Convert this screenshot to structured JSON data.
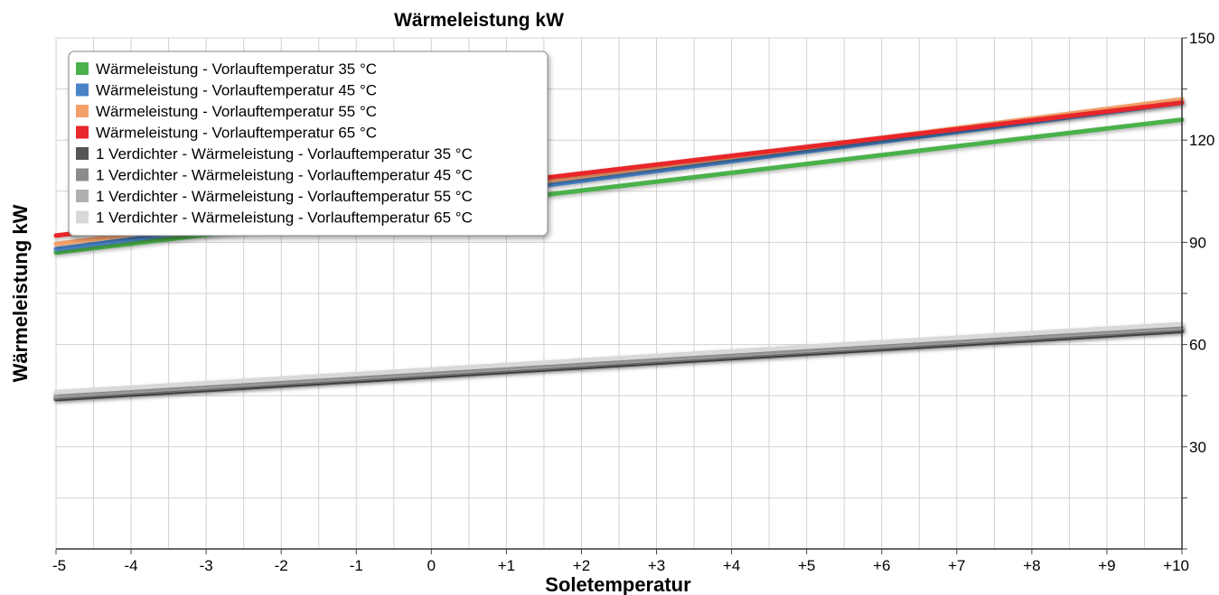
{
  "chart_data": {
    "type": "line",
    "title": "Wärmeleistung kW",
    "xlabel": "Soletemperatur",
    "ylabel": "Wärmeleistung kW",
    "x": [
      -5,
      10
    ],
    "x_tick_labels": [
      "-5",
      "-4",
      "-3",
      "-2",
      "-1",
      "0",
      "+1",
      "+2",
      "+3",
      "+4",
      "+5",
      "+6",
      "+7",
      "+8",
      "+9",
      "+10"
    ],
    "ylim": [
      0,
      150
    ],
    "y_tick_labels": [
      "30",
      "60",
      "90",
      "120",
      "150"
    ],
    "y_axis_side": "right",
    "grid": true,
    "legend_position": "top-left",
    "series": [
      {
        "name": "Wärmeleistung - Vorlauftemperatur 35 °C",
        "color": "#4cb14c",
        "values": [
          87,
          126
        ]
      },
      {
        "name": "Wärmeleistung - Vorlauftemperatur 45 °C",
        "color": "#4a84c8",
        "values": [
          88,
          131
        ]
      },
      {
        "name": "Wärmeleistung - Vorlauftemperatur 55 °C",
        "color": "#f4a06a",
        "values": [
          89.5,
          132
        ]
      },
      {
        "name": "Wärmeleistung - Vorlauftemperatur 65 °C",
        "color": "#e8262b",
        "values": [
          92,
          131
        ]
      },
      {
        "name": "1 Verdichter - Wärmeleistung - Vorlauftemperatur 35 °C",
        "color": "#555555",
        "values": [
          44,
          64
        ]
      },
      {
        "name": "1 Verdichter - Wärmeleistung - Vorlauftemperatur 45 °C",
        "color": "#8c8c8c",
        "values": [
          44.5,
          64.5
        ]
      },
      {
        "name": "1 Verdichter - Wärmeleistung - Vorlauftemperatur 55 °C",
        "color": "#b0b0b0",
        "values": [
          45,
          65
        ]
      },
      {
        "name": "1 Verdichter - Wärmeleistung - Vorlauftemperatur 65 °C",
        "color": "#d8d8d8",
        "values": [
          46,
          66
        ]
      }
    ]
  }
}
